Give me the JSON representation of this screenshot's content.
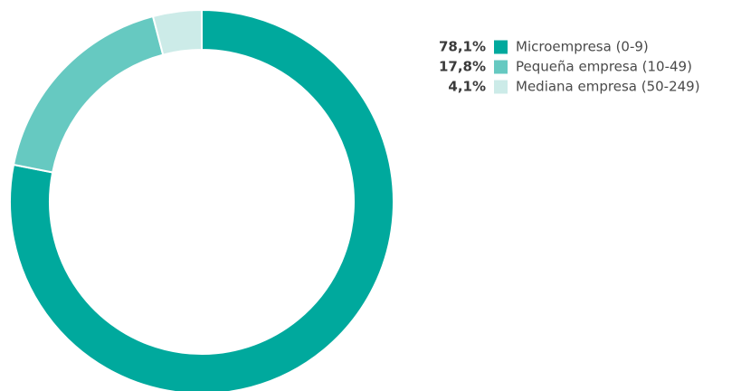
{
  "chart_data": {
    "type": "pie",
    "style": "donut",
    "legend_position": "top-right",
    "slices": [
      {
        "label": "Microempresa (0-9)",
        "value": 78.1,
        "value_label": "78,1%",
        "color": "#00a99d"
      },
      {
        "label": "Pequeña empresa (10-49)",
        "value": 17.8,
        "value_label": "17,8%",
        "color": "#66c9c1"
      },
      {
        "label": "Mediana empresa (50-249)",
        "value": 4.1,
        "value_label": "4,1%",
        "color": "#ccebe8"
      }
    ]
  }
}
